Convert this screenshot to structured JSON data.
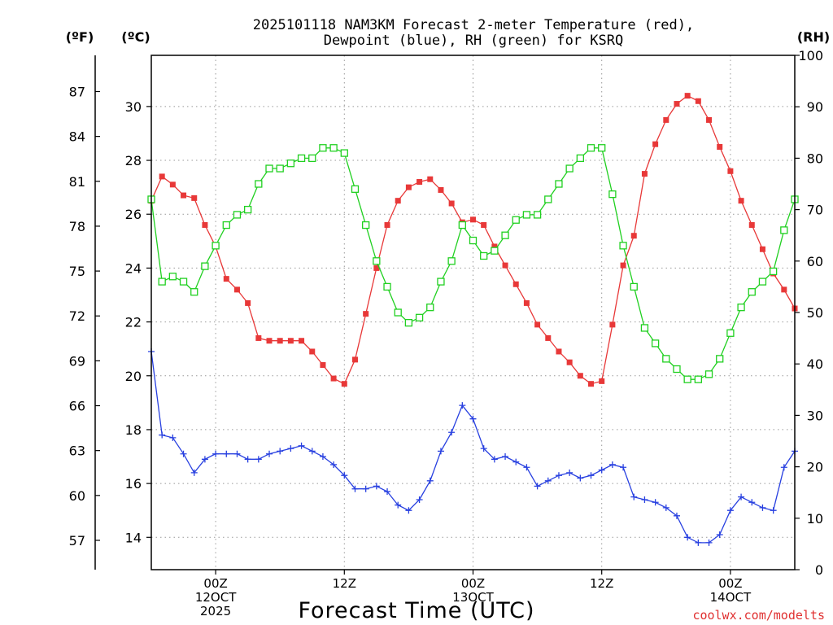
{
  "chart_data": {
    "type": "line",
    "title_lines": [
      "2025101118 NAM3KM Forecast 2-meter Temperature (red),",
      "Dewpoint (blue), RH (green) for KSRQ"
    ],
    "xlabel": "Forecast Time (UTC)",
    "credit": "coolwx.com/modelts",
    "units": {
      "fahrenheit": "(ºF)",
      "celsius": "(ºC)",
      "rh": "(RH)"
    },
    "x_range_hours": [
      0,
      60
    ],
    "x_ticks": [
      {
        "hour": 6,
        "lines": [
          "00Z",
          "12OCT",
          "2025"
        ]
      },
      {
        "hour": 18,
        "lines": [
          "12Z"
        ]
      },
      {
        "hour": 30,
        "lines": [
          "00Z",
          "13OCT"
        ]
      },
      {
        "hour": 42,
        "lines": [
          "12Z"
        ]
      },
      {
        "hour": 54,
        "lines": [
          "00Z",
          "14OCT"
        ]
      }
    ],
    "y_left_celsius": {
      "range": [
        12.8,
        31.9
      ],
      "ticks": [
        14,
        16,
        18,
        20,
        22,
        24,
        26,
        28,
        30
      ]
    },
    "y_left_fahrenheit": {
      "ticks": [
        57,
        60,
        63,
        66,
        69,
        72,
        75,
        78,
        81,
        84,
        87
      ]
    },
    "y_right_rh": {
      "range": [
        0,
        100
      ],
      "ticks": [
        0,
        10,
        20,
        30,
        40,
        50,
        60,
        70,
        80,
        90,
        100
      ]
    },
    "series": [
      {
        "name": "Temperature",
        "axis": "celsius",
        "color": "#e83838",
        "marker": "filled-square",
        "values": [
          26.5,
          27.4,
          27.1,
          26.7,
          26.6,
          25.6,
          24.8,
          23.6,
          23.2,
          22.7,
          21.4,
          21.3,
          21.3,
          21.3,
          21.3,
          20.9,
          20.4,
          19.9,
          19.7,
          20.6,
          22.3,
          24.0,
          25.6,
          26.5,
          27.0,
          27.2,
          27.3,
          26.9,
          26.4,
          25.7,
          25.8,
          25.6,
          24.8,
          24.1,
          23.4,
          22.7,
          21.9,
          21.4,
          20.9,
          20.5,
          20.0,
          19.7,
          19.8,
          21.9,
          24.1,
          25.2,
          27.5,
          28.6,
          29.5,
          30.1,
          30.4,
          30.2,
          29.5,
          28.5,
          27.6,
          26.5,
          25.6,
          24.7,
          23.8,
          23.2,
          22.5
        ]
      },
      {
        "name": "Dewpoint",
        "axis": "celsius",
        "color": "#2840e0",
        "marker": "plus",
        "values": [
          20.9,
          17.8,
          17.7,
          17.1,
          16.4,
          16.9,
          17.1,
          17.1,
          17.1,
          16.9,
          16.9,
          17.1,
          17.2,
          17.3,
          17.4,
          17.2,
          17.0,
          16.7,
          16.3,
          15.8,
          15.8,
          15.9,
          15.7,
          15.2,
          15.0,
          15.4,
          16.1,
          17.2,
          17.9,
          18.9,
          18.4,
          17.3,
          16.9,
          17.0,
          16.8,
          16.6,
          15.9,
          16.1,
          16.3,
          16.4,
          16.2,
          16.3,
          16.5,
          16.7,
          16.6,
          15.5,
          15.4,
          15.3,
          15.1,
          14.8,
          14.0,
          13.8,
          13.8,
          14.1,
          15.0,
          15.5,
          15.3,
          15.1,
          15.0,
          16.6,
          17.2
        ]
      },
      {
        "name": "RH",
        "axis": "rh",
        "color": "#20d020",
        "marker": "open-square",
        "values": [
          72,
          56,
          57,
          56,
          54,
          59,
          63,
          67,
          69,
          70,
          75,
          78,
          78,
          79,
          80,
          80,
          82,
          82,
          81,
          74,
          67,
          60,
          55,
          50,
          48,
          49,
          51,
          56,
          60,
          67,
          64,
          61,
          62,
          65,
          68,
          69,
          69,
          72,
          75,
          78,
          80,
          82,
          82,
          73,
          63,
          55,
          47,
          44,
          41,
          39,
          37,
          37,
          38,
          41,
          46,
          51,
          54,
          56,
          58,
          66,
          72
        ]
      }
    ]
  }
}
